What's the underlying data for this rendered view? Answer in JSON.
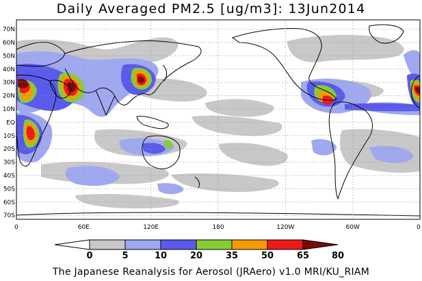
{
  "title": "Daily Averaged PM2.5 [ug/m3]: 13Jun2014",
  "footer": "The Japanese Reanalysis for Aerosol (JRAero) v1.0 MRI/KU_RIAM",
  "lat_labels": [
    "70N",
    "60N",
    "50N",
    "40N",
    "30N",
    "20N",
    "10N",
    "EQ",
    "10S",
    "20S",
    "30S",
    "40S",
    "50S",
    "60S",
    "70S"
  ],
  "lon_labels": [
    "0",
    "60E",
    "120E",
    "180",
    "120W",
    "60W",
    "0"
  ],
  "colorbar": {
    "labels": [
      "0",
      "5",
      "10",
      "20",
      "35",
      "50",
      "65",
      "80"
    ],
    "colors": [
      "#ffffff",
      "#c8c8c8",
      "#a0a8f0",
      "#5a5aeb",
      "#88cc33",
      "#f59a00",
      "#ee1a1a",
      "#7a0a0a"
    ]
  },
  "chart_data": {
    "type": "heatmap",
    "title": "Daily Averaged PM2.5 [ug/m3]: 13Jun2014",
    "variable": "PM2.5",
    "units": "ug/m3",
    "date": "13Jun2014",
    "levels": [
      0,
      5,
      10,
      20,
      35,
      50,
      65,
      80
    ],
    "lat_range": [
      -75,
      75
    ],
    "lon_range": [
      0,
      360
    ],
    "projection": "cylindrical equidistant",
    "grid": true,
    "source": "The Japanese Reanalysis for Aerosol (JRAero) v1.0 MRI/KU_RIAM"
  }
}
